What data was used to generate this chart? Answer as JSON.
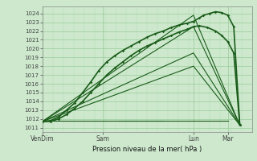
{
  "xlabel": "Pression niveau de la mer( hPa )",
  "ylim": [
    1010.5,
    1024.8
  ],
  "yticks": [
    1011,
    1012,
    1013,
    1014,
    1015,
    1016,
    1017,
    1018,
    1019,
    1020,
    1021,
    1022,
    1023,
    1024
  ],
  "xtick_labels": [
    "VenDim",
    "Sam",
    "Lun",
    "Mar"
  ],
  "xtick_positions": [
    0,
    0.3,
    0.75,
    0.92
  ],
  "bg_color": "#cde8cd",
  "grid_color": "#99cc99",
  "line_color": "#1a5c1a",
  "xlim": [
    0,
    1.04
  ],
  "series_main": {
    "x": [
      0.0,
      0.04,
      0.08,
      0.12,
      0.16,
      0.2,
      0.24,
      0.28,
      0.32,
      0.36,
      0.4,
      0.44,
      0.48,
      0.52,
      0.56,
      0.6,
      0.64,
      0.68,
      0.72,
      0.75,
      0.78,
      0.8,
      0.83,
      0.86,
      0.89,
      0.92,
      0.95,
      0.98
    ],
    "y": [
      1011.7,
      1011.8,
      1012.2,
      1013.0,
      1013.8,
      1015.0,
      1016.2,
      1017.5,
      1018.5,
      1019.2,
      1019.8,
      1020.3,
      1020.8,
      1021.3,
      1021.7,
      1022.0,
      1022.4,
      1022.7,
      1022.9,
      1023.1,
      1023.5,
      1023.8,
      1024.0,
      1024.2,
      1024.1,
      1023.8,
      1022.5,
      1011.3
    ]
  },
  "series_second": {
    "x": [
      0.0,
      0.04,
      0.08,
      0.12,
      0.16,
      0.2,
      0.24,
      0.28,
      0.32,
      0.36,
      0.4,
      0.44,
      0.48,
      0.52,
      0.56,
      0.6,
      0.64,
      0.68,
      0.72,
      0.75,
      0.78,
      0.82,
      0.86,
      0.89,
      0.92,
      0.95,
      0.98
    ],
    "y": [
      1011.7,
      1011.7,
      1012.0,
      1012.5,
      1013.2,
      1014.0,
      1015.0,
      1016.0,
      1017.0,
      1017.8,
      1018.5,
      1019.2,
      1019.8,
      1020.3,
      1020.7,
      1021.1,
      1021.5,
      1021.9,
      1022.2,
      1022.5,
      1022.6,
      1022.4,
      1022.0,
      1021.5,
      1020.8,
      1019.5,
      1011.3
    ]
  },
  "fan_lines": [
    {
      "x": [
        0.0,
        0.75,
        0.98
      ],
      "y": [
        1011.7,
        1023.8,
        1011.3
      ]
    },
    {
      "x": [
        0.0,
        0.75,
        0.98
      ],
      "y": [
        1011.7,
        1022.5,
        1011.3
      ]
    },
    {
      "x": [
        0.0,
        0.75,
        0.98
      ],
      "y": [
        1011.7,
        1019.5,
        1011.3
      ]
    },
    {
      "x": [
        0.0,
        0.75,
        0.98
      ],
      "y": [
        1011.7,
        1018.0,
        1011.3
      ]
    }
  ],
  "flat_lines": [
    {
      "x": [
        0.0,
        0.6
      ],
      "y": [
        1011.8,
        1011.8
      ]
    },
    {
      "x": [
        0.38,
        0.92
      ],
      "y": [
        1011.8,
        1011.8
      ]
    }
  ]
}
